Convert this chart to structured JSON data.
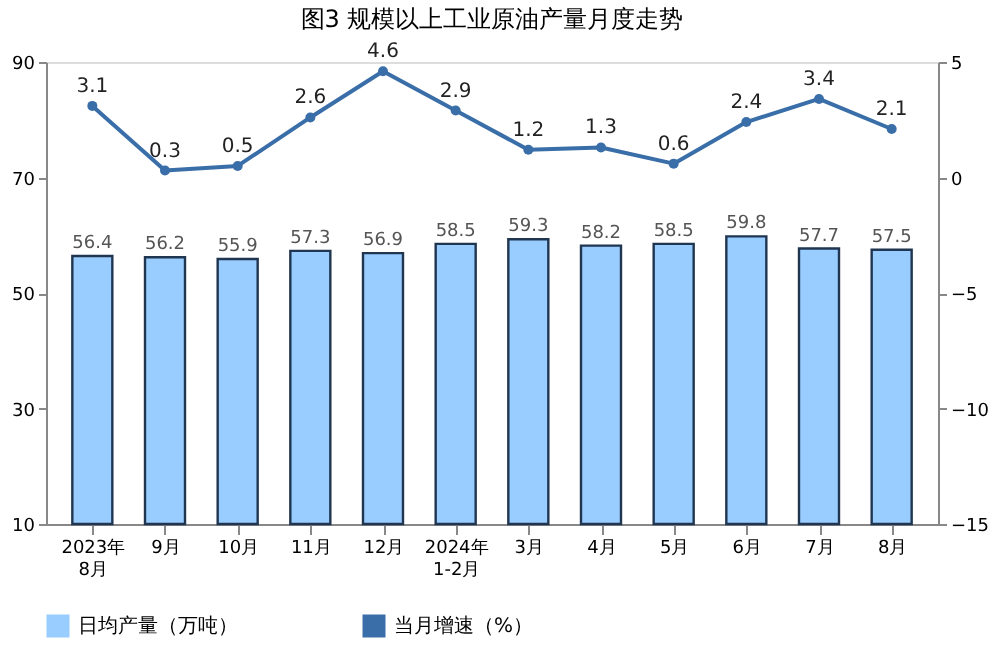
{
  "chart_data": {
    "type": "bar",
    "title": "图3  规模以上工业原油产量月度走势",
    "categories": [
      "2023年\n8月",
      "9月",
      "10月",
      "11月",
      "12月",
      "2024年\n1-2月",
      "3月",
      "4月",
      "5月",
      "6月",
      "7月",
      "8月"
    ],
    "series": [
      {
        "name": "日均产量（万吨）",
        "color": "#99ccff",
        "values": [
          56.4,
          56.2,
          55.9,
          57.3,
          56.9,
          58.5,
          59.3,
          58.2,
          58.5,
          59.8,
          57.7,
          57.5
        ]
      },
      {
        "name": "当月增速（%）",
        "type": "line",
        "axis": "y2",
        "color": "#3a6ea8",
        "values": [
          3.1,
          0.3,
          0.5,
          2.6,
          4.6,
          2.9,
          1.2,
          1.3,
          0.6,
          2.4,
          3.4,
          2.1
        ]
      }
    ],
    "ylim": [
      10,
      90
    ],
    "yticks": [
      10,
      30,
      50,
      70,
      90
    ],
    "y2lim": [
      -15,
      5
    ],
    "y2ticks": [
      -15,
      -10,
      -5,
      0,
      5
    ],
    "data_labels": true,
    "grid": false,
    "legend": "bottom",
    "marker": "circle"
  }
}
